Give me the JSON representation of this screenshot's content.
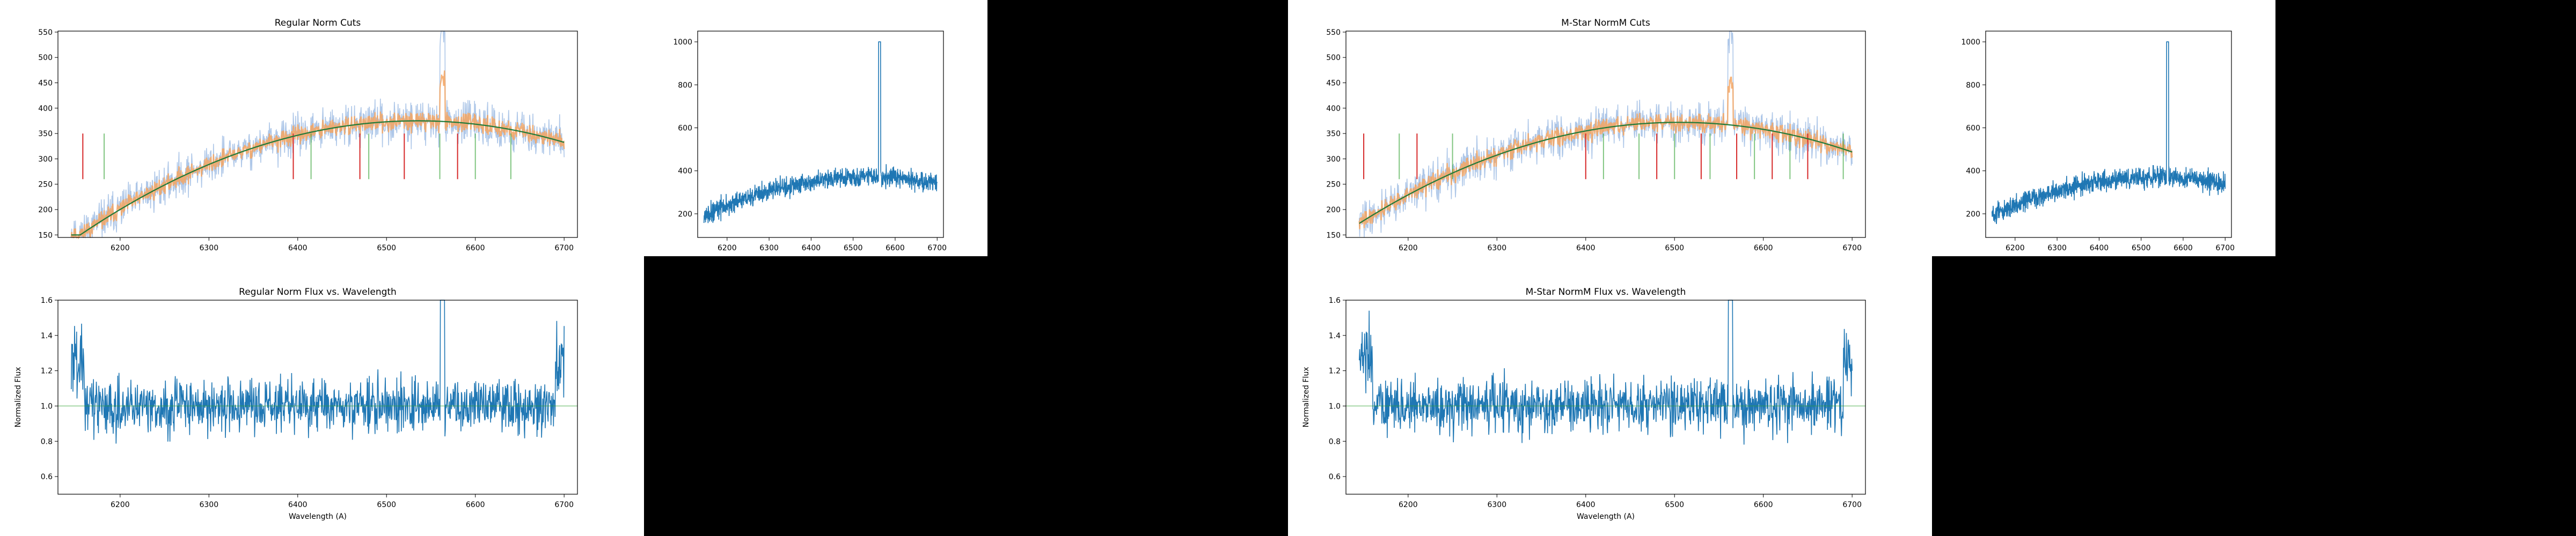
{
  "panels": {
    "regular": {
      "cuts_chart": {
        "type": "line",
        "title": "Regular Norm Cuts",
        "xlabel": "",
        "ylabel": "",
        "xlim": [
          6130,
          6715
        ],
        "ylim": [
          145,
          552
        ],
        "xticks": [
          6200,
          6300,
          6400,
          6500,
          6600,
          6700
        ],
        "yticks": [
          150,
          200,
          250,
          300,
          350,
          400,
          450,
          500,
          550
        ],
        "fit": {
          "name": "",
          "color": "#2ca02c",
          "peak_x": 6535,
          "peak_y": 375,
          "min_y": 150
        },
        "series_colors": {
          "raw": "#aec7e8",
          "kept": "#f4a460",
          "fit": "#1f7a3a"
        },
        "line_marks": {
          "red": [
            6158,
            6395,
            6470,
            6520,
            6580
          ],
          "green": [
            6182,
            6415,
            6480,
            6560,
            6600,
            6640
          ]
        }
      },
      "raw_chart": {
        "type": "line",
        "title": "",
        "xlabel": "",
        "ylabel": "",
        "xlim": [
          6130,
          6715
        ],
        "ylim": [
          90,
          1050
        ],
        "xticks": [
          6200,
          6300,
          6400,
          6500,
          6600,
          6700
        ],
        "yticks": [
          200,
          400,
          600,
          800,
          1000
        ],
        "peak": {
          "x": 6563,
          "y": 1000
        }
      },
      "flux_chart": {
        "type": "line",
        "title": "Regular Norm Flux vs. Wavelength",
        "xlabel": "Wavelength (A)",
        "ylabel": "Normalized Flux",
        "xlim": [
          6130,
          6715
        ],
        "ylim": [
          0.5,
          1.6
        ],
        "xticks": [
          6200,
          6300,
          6400,
          6500,
          6600,
          6700
        ],
        "yticks": [
          "0.6",
          "0.8",
          "1.0",
          "1.2",
          "1.4",
          "1.6"
        ],
        "reference_line": 1.0
      }
    },
    "mstar": {
      "cuts_chart": {
        "type": "line",
        "title": "M-Star NormM Cuts",
        "xlabel": "",
        "ylabel": "",
        "xlim": [
          6130,
          6715
        ],
        "ylim": [
          145,
          552
        ],
        "xticks": [
          6200,
          6300,
          6400,
          6500,
          6600,
          6700
        ],
        "yticks": [
          150,
          200,
          250,
          300,
          350,
          400,
          450,
          500,
          550
        ],
        "fit": {
          "name": "",
          "color": "#2ca02c",
          "peak_x": 6505,
          "peak_y": 372,
          "min_y": 150
        },
        "series_colors": {
          "raw": "#aec7e8",
          "kept": "#f4a460",
          "fit": "#1f7a3a"
        },
        "line_marks": {
          "red": [
            6150,
            6210,
            6400,
            6480,
            6530,
            6570,
            6610,
            6650
          ],
          "green": [
            6190,
            6250,
            6420,
            6460,
            6500,
            6540,
            6590,
            6630,
            6690
          ]
        }
      },
      "raw_chart": {
        "type": "line",
        "title": "",
        "xlabel": "",
        "ylabel": "",
        "xlim": [
          6130,
          6715
        ],
        "ylim": [
          90,
          1050
        ],
        "xticks": [
          6200,
          6300,
          6400,
          6500,
          6600,
          6700
        ],
        "yticks": [
          200,
          400,
          600,
          800,
          1000
        ],
        "peak": {
          "x": 6563,
          "y": 1000
        }
      },
      "flux_chart": {
        "type": "line",
        "title": "M-Star NormM Flux vs. Wavelength",
        "xlabel": "Wavelength (A)",
        "ylabel": "Normalized Flux",
        "xlim": [
          6130,
          6715
        ],
        "ylim": [
          0.5,
          1.6
        ],
        "xticks": [
          6200,
          6300,
          6400,
          6500,
          6600,
          6700
        ],
        "yticks": [
          "0.6",
          "0.8",
          "1.0",
          "1.2",
          "1.4",
          "1.6"
        ],
        "reference_line": 1.0
      }
    }
  }
}
